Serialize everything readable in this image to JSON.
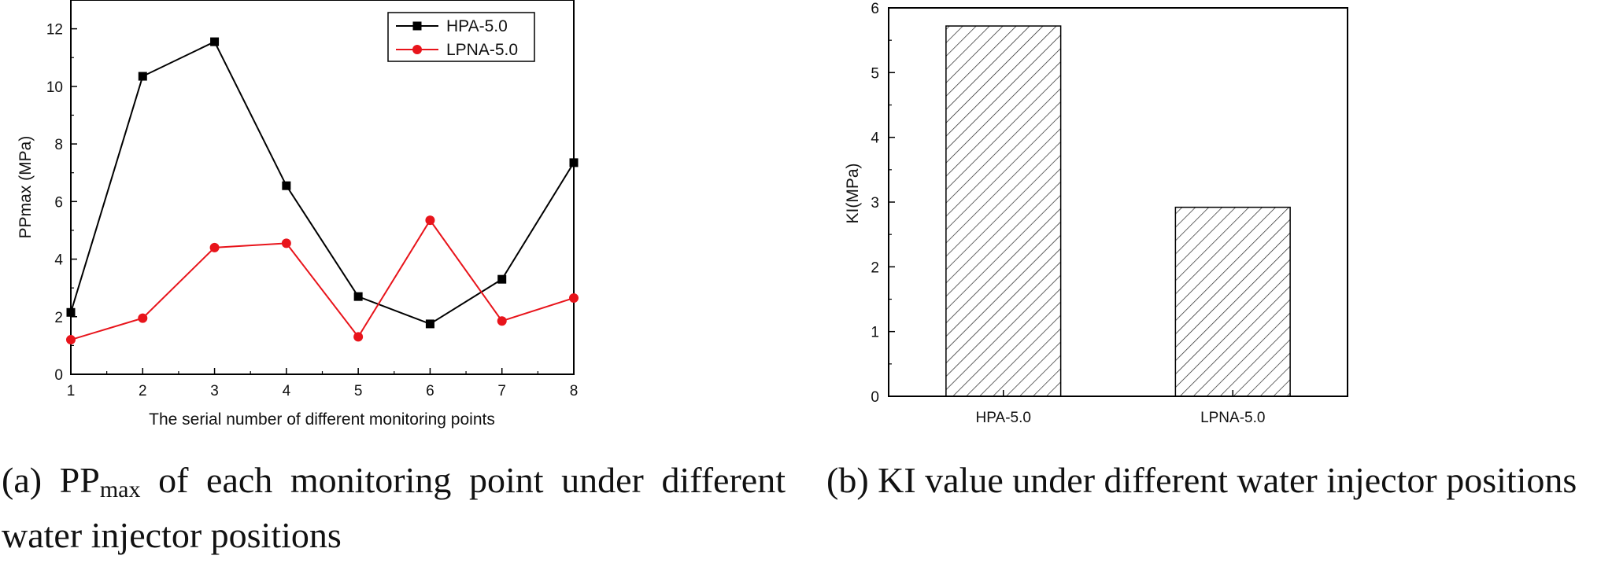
{
  "chart_data": [
    {
      "type": "line",
      "xlabel": "The serial number of different monitoring points",
      "ylabel": "PPmax (MPa)",
      "xlim": [
        1,
        8
      ],
      "ylim": [
        0,
        13
      ],
      "x_ticks": [
        "1",
        "2",
        "3",
        "4",
        "5",
        "6",
        "7",
        "8"
      ],
      "y_ticks": [
        "0",
        "2",
        "4",
        "6",
        "8",
        "10",
        "12"
      ],
      "legend_placement": "top-right",
      "x": [
        1,
        2,
        3,
        4,
        5,
        6,
        7,
        8
      ],
      "series": [
        {
          "name": "HPA-5.0",
          "color": "#000000",
          "marker": "square",
          "values": [
            2.15,
            10.35,
            11.55,
            6.55,
            2.7,
            1.75,
            3.3,
            7.35
          ]
        },
        {
          "name": "LPNA-5.0",
          "color": "#e8141b",
          "marker": "circle",
          "values": [
            1.2,
            1.95,
            4.4,
            4.55,
            1.3,
            5.35,
            1.85,
            2.65
          ]
        }
      ],
      "caption": {
        "prefix": "(a) PP",
        "subscript": "max",
        "rest": " of each monitoring point under different water injector positions"
      }
    },
    {
      "type": "bar",
      "ylabel": "KI(MPa)",
      "ylim": [
        0,
        6
      ],
      "y_ticks": [
        "0",
        "1",
        "2",
        "3",
        "4",
        "5",
        "6"
      ],
      "categories": [
        "HPA-5.0",
        "LPNA-5.0"
      ],
      "values": [
        5.72,
        2.92
      ],
      "fill": "diagonal-hatch",
      "caption": {
        "text": "(b) KI value under different water injector positions"
      }
    }
  ]
}
